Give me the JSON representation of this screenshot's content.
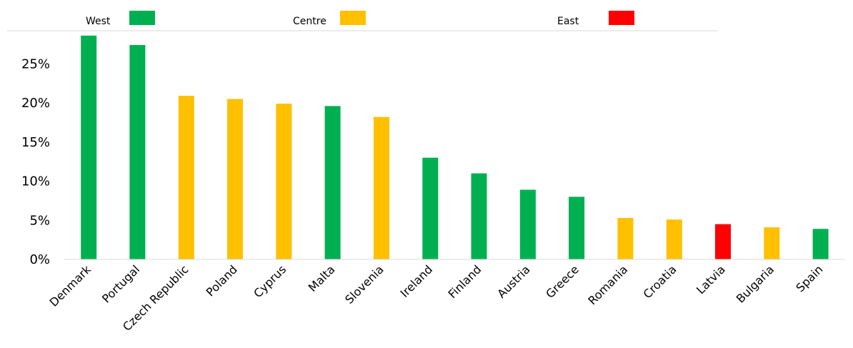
{
  "chart_data": {
    "type": "bar",
    "title": "",
    "xlabel": "",
    "ylabel": "",
    "ylim": [
      0,
      30
    ],
    "y_ticks": [
      "0%",
      "5%",
      "10%",
      "15%",
      "20%",
      "25%"
    ],
    "y_tick_values": [
      0,
      5,
      10,
      15,
      20,
      25
    ],
    "grid": false,
    "legend_position": "top",
    "legend": [
      {
        "name": "West",
        "color": "#00b050"
      },
      {
        "name": "Centre",
        "color": "#ffc000"
      },
      {
        "name": "East",
        "color": "#ff0000"
      }
    ],
    "categories": [
      "Denmark",
      "Portugal",
      "Czech Republic",
      "Poland",
      "Cyprus",
      "Malta",
      "Slovenia",
      "Ireland",
      "Finland",
      "Austria",
      "Greece",
      "Romania",
      "Croatia",
      "Latvia",
      "Bulgaria",
      "Spain"
    ],
    "values": [
      28.6,
      27.4,
      20.9,
      20.5,
      19.9,
      19.6,
      18.2,
      13.0,
      11.0,
      8.9,
      8.0,
      5.3,
      5.1,
      4.5,
      4.1,
      3.9
    ],
    "groups": [
      "West",
      "West",
      "Centre",
      "Centre",
      "Centre",
      "West",
      "Centre",
      "West",
      "West",
      "West",
      "West",
      "Centre",
      "Centre",
      "East",
      "Centre",
      "West"
    ]
  }
}
